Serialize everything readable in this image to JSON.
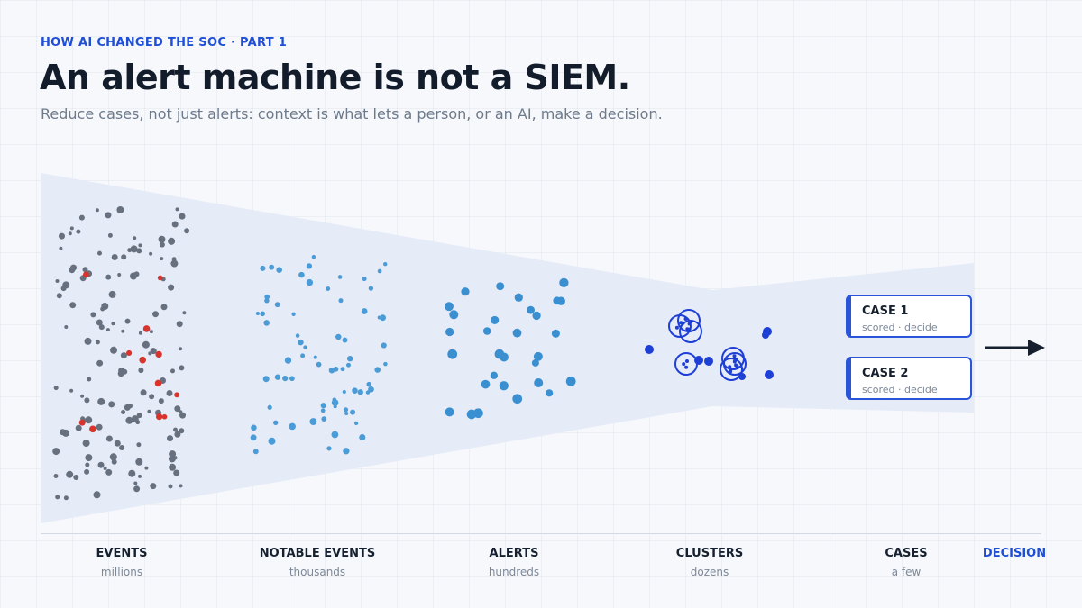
{
  "header": {
    "eyebrow": "HOW AI CHANGED THE SOC · PART 1",
    "title": "An alert machine is not a SIEM.",
    "subtitle": "Reduce cases, not just alerts: context is what lets a person, or an AI, make a decision."
  },
  "stages": [
    {
      "label": "EVENTS",
      "unit": "millions"
    },
    {
      "label": "NOTABLE EVENTS",
      "unit": "thousands"
    },
    {
      "label": "ALERTS",
      "unit": "hundreds"
    },
    {
      "label": "CLUSTERS",
      "unit": "dozens"
    },
    {
      "label": "CASES",
      "unit": "a few"
    }
  ],
  "decision_label": "DECISION",
  "cases": [
    {
      "title": "CASE 1",
      "subtitle": "scored · decide"
    },
    {
      "title": "CASE 2",
      "subtitle": "scored · decide"
    }
  ],
  "colors": {
    "events_dot": "#67707e",
    "events_highlight": "#d9342b",
    "notable_dot": "#4a9bd6",
    "alert_dot": "#3a8fd0",
    "cluster": "#1d3fd6",
    "accent": "#1f4fd6",
    "funnel_fill": "#e6ebf8"
  },
  "icons": {
    "decision_arrow": "right-arrow-icon"
  }
}
